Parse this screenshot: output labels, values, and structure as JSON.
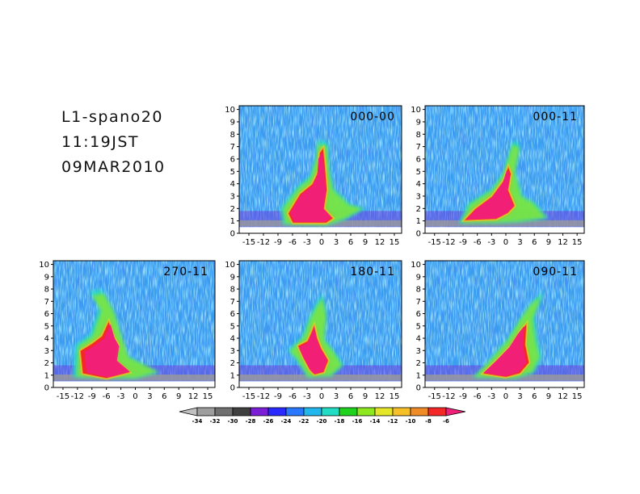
{
  "header": {
    "line1": "L1-spano20",
    "line2": "11:19JST",
    "line3": "09MAR2010"
  },
  "chart_data": {
    "type": "heatmap",
    "x_ticks": [
      "-15",
      "-12",
      "-9",
      "-6",
      "-3",
      "0",
      "3",
      "6",
      "9",
      "12",
      "15"
    ],
    "y_ticks": [
      "0",
      "1",
      "2",
      "3",
      "4",
      "5",
      "6",
      "7",
      "8",
      "9",
      "10"
    ],
    "xlim": [
      -17,
      16.5
    ],
    "ylim": [
      0,
      10.3
    ],
    "panels": [
      {
        "title": "000-00"
      },
      {
        "title": "000-11"
      },
      {
        "title": "270-11"
      },
      {
        "title": "180-11"
      },
      {
        "title": "090-11"
      }
    ],
    "colorbar": {
      "labels": [
        "-34",
        "-32",
        "-30",
        "-28",
        "-26",
        "-24",
        "-22",
        "-20",
        "-18",
        "-16",
        "-14",
        "-12",
        "-10",
        "-8",
        "-6"
      ],
      "colors": [
        "#c0c0c0",
        "#9e9e9e",
        "#707070",
        "#404040",
        "#7a1fd6",
        "#2a2aff",
        "#2a78ff",
        "#22b8ee",
        "#22ddc4",
        "#1ed21e",
        "#8ee820",
        "#e6e628",
        "#f5c028",
        "#f08c28",
        "#f52828",
        "#f0207a"
      ]
    }
  }
}
